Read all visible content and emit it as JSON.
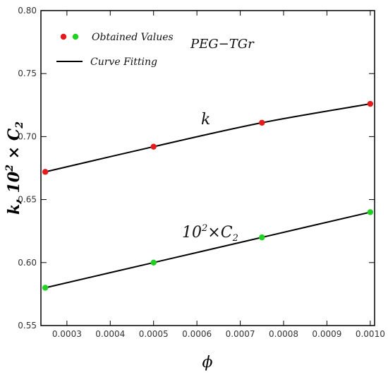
{
  "chart_data": {
    "type": "scatter",
    "xlabel": "ϕ",
    "ylabel_parts": {
      "base": "k, 10",
      "exp": "2",
      "times": " × C",
      "sub": "2"
    },
    "xlim": [
      0.00024,
      0.00101
    ],
    "ylim": [
      0.55,
      0.8
    ],
    "x_ticks": [
      0.0003,
      0.0004,
      0.0005,
      0.0006,
      0.0007,
      0.0008,
      0.0009,
      0.001
    ],
    "x_tick_labels": [
      "0.0003",
      "0.0004",
      "0.0005",
      "0.0006",
      "0.0007",
      "0.0008",
      "0.0009",
      "0.0010"
    ],
    "y_ticks": [
      0.55,
      0.6,
      0.65,
      0.7,
      0.75,
      0.8
    ],
    "y_tick_labels": [
      "0.55",
      "0.60",
      "0.65",
      "0.70",
      "0.75",
      "0.80"
    ],
    "grid": false,
    "legend": {
      "position": "top-left",
      "items": [
        {
          "kind": "markers",
          "colors": [
            "#e41a1c",
            "#22d022"
          ],
          "label": "Obtained Values"
        },
        {
          "kind": "line",
          "color": "#000000",
          "label": "Curve Fitting"
        }
      ]
    },
    "annotation": "PEG−TGr",
    "series": [
      {
        "curve_label": "k",
        "color": "#e41a1c",
        "points": [
          {
            "x": 0.00025,
            "y": 0.672
          },
          {
            "x": 0.0005,
            "y": 0.692
          },
          {
            "x": 0.00075,
            "y": 0.711
          },
          {
            "x": 0.001,
            "y": 0.726
          }
        ]
      },
      {
        "curve_label_parts": {
          "base": "10",
          "exp": "2",
          "times": "×C",
          "sub": "2"
        },
        "color": "#22d022",
        "points": [
          {
            "x": 0.00025,
            "y": 0.58
          },
          {
            "x": 0.0005,
            "y": 0.6
          },
          {
            "x": 0.00075,
            "y": 0.62
          },
          {
            "x": 0.001,
            "y": 0.64
          }
        ]
      }
    ]
  }
}
